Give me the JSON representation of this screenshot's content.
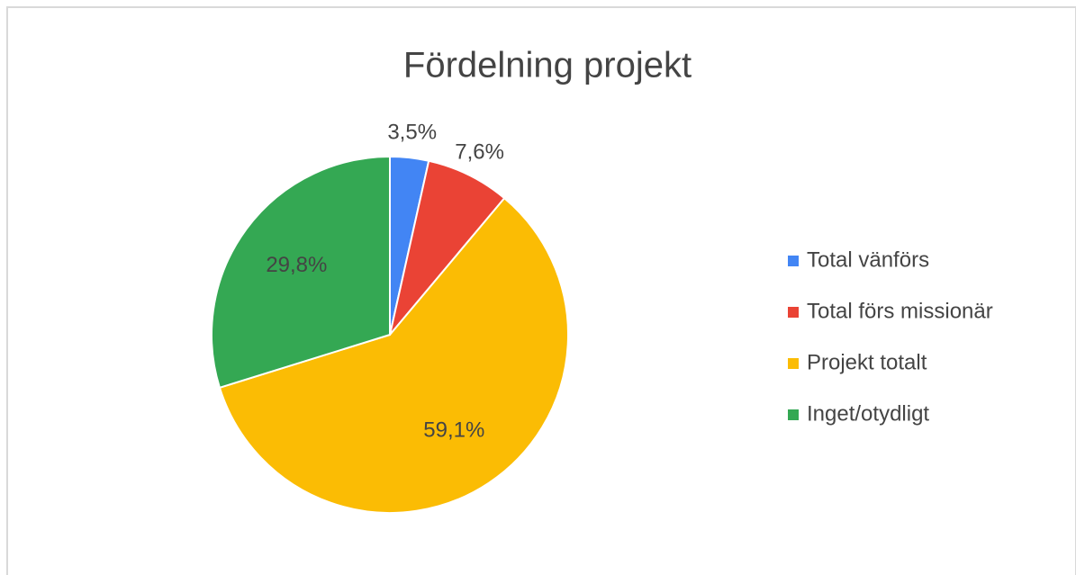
{
  "chart_data": {
    "type": "pie",
    "title": "Fördelning projekt",
    "categories": [
      "Total vänförs",
      "Total förs missionär",
      "Projekt totalt",
      "Inget/otydligt"
    ],
    "values": [
      3.5,
      7.6,
      59.1,
      29.8
    ],
    "value_labels": [
      "3,5%",
      "7,6%",
      "59,1%",
      "29,8%"
    ],
    "colors": [
      "#4285f4",
      "#ea4335",
      "#fbbc04",
      "#34a853"
    ],
    "legend": "right"
  }
}
